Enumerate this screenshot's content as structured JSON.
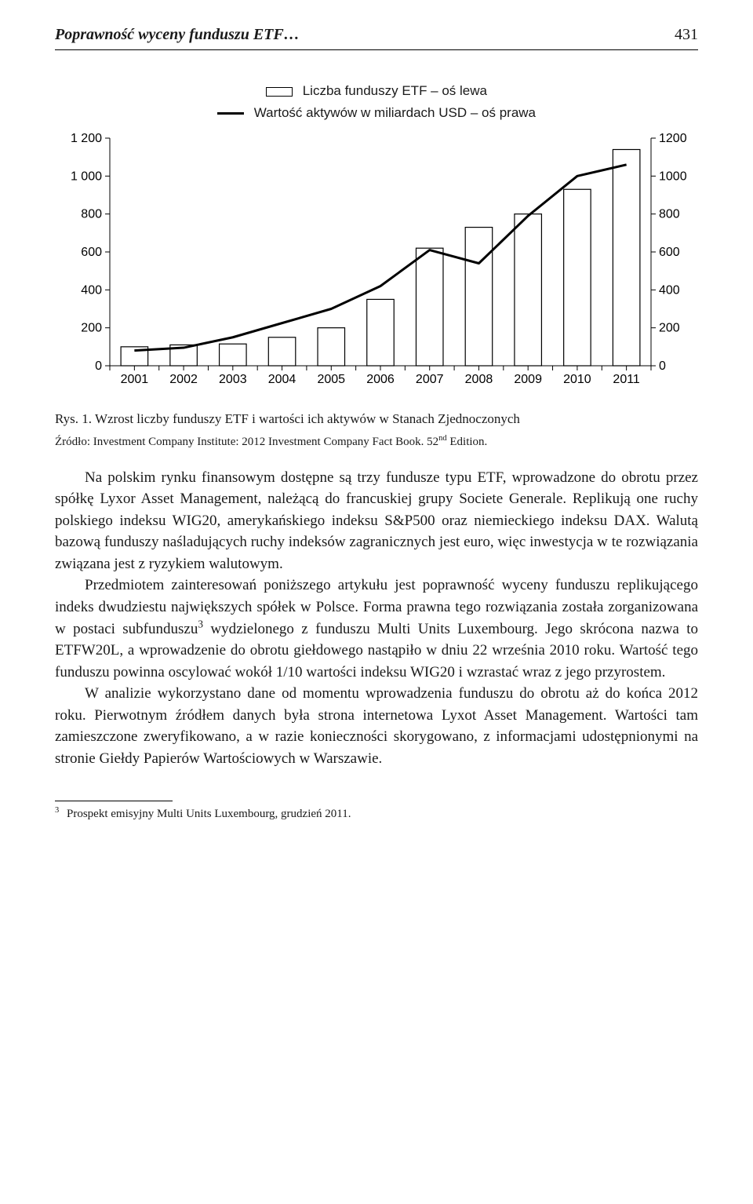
{
  "header": {
    "running_title": "Poprawność wyceny funduszu ETF…",
    "page_number": "431"
  },
  "chart": {
    "type": "bar+line",
    "legend": {
      "bar": "Liczba funduszy ETF – oś lewa",
      "line": "Wartość aktywów w miliardach USD – oś prawa"
    },
    "categories": [
      "2001",
      "2002",
      "2003",
      "2004",
      "2005",
      "2006",
      "2007",
      "2008",
      "2009",
      "2010",
      "2011"
    ],
    "bars": [
      100,
      110,
      115,
      150,
      200,
      350,
      620,
      730,
      800,
      930,
      1140
    ],
    "line": [
      80,
      95,
      150,
      225,
      300,
      420,
      610,
      540,
      790,
      1000,
      1060
    ],
    "left_axis": {
      "ticks": [
        0,
        200,
        400,
        600,
        800,
        1000,
        1200
      ],
      "display": [
        "0",
        "200",
        "400",
        "600",
        "800",
        "1 000",
        "1 200"
      ],
      "min": 0,
      "max": 1200
    },
    "right_axis": {
      "ticks": [
        0,
        200,
        400,
        600,
        800,
        1000,
        1200
      ],
      "min": 0,
      "max": 1200
    },
    "styling": {
      "bar_color": "#ffffff",
      "bar_stroke": "#000000",
      "bar_width": 0.55,
      "line_color": "#000000",
      "line_width": 3,
      "axis_color": "#000000",
      "tick_len": 6,
      "plot_bg": "#ffffff",
      "font_family": "Arial",
      "axis_fontsize": 16,
      "legend_fontsize": 17
    },
    "caption": "Rys. 1. Wzrost liczby funduszy ETF i wartości ich aktywów w Stanach Zjednoczonych",
    "source_label": "Źródło: Investment Company Institute: 2012 Investment Company Fact Book. 52",
    "source_sup": "nd",
    "source_tail": " Edition."
  },
  "paragraphs": {
    "p1": "Na polskim rynku finansowym dostępne są trzy fundusze typu ETF, wprowadzone do obrotu przez spółkę Lyxor Asset Management, należącą do francuskiej grupy Societe Generale. Replikują one ruchy polskiego indeksu WIG20, amerykańskiego indeksu S&P500 oraz niemieckiego indeksu DAX. Walutą bazową funduszy naśladujących ruchy indeksów zagranicznych jest euro, więc inwestycja w te rozwiązania związana jest z ryzykiem walutowym.",
    "p2_a": "Przedmiotem zainteresowań poniższego artykułu jest poprawność wyceny funduszu replikującego indeks dwudziestu największych spółek w Polsce. Forma prawna tego rozwiązania została zorganizowana w postaci subfunduszu",
    "p2_sup": "3",
    "p2_b": " wydzielonego z funduszu Multi Units Luxembourg. Jego skrócona nazwa to ETFW20L, a wprowadzenie do obrotu giełdowego nastąpiło w dniu 22 września 2010 roku. Wartość tego funduszu powinna oscylować wokół 1/10 wartości indeksu WIG20 i wzrastać wraz z jego przyrostem.",
    "p3": "W analizie wykorzystano dane od momentu wprowadzenia funduszu do obrotu aż do końca 2012 roku. Pierwotnym źródłem danych była strona internetowa Lyxot Asset Management. Wartości tam zamieszczone zweryfikowano, a w razie konieczności skorygowano, z informacjami udostępnionymi na stronie Giełdy Papierów Wartościowych w Warszawie."
  },
  "footnote": {
    "num": "3",
    "text": "Prospekt emisyjny Multi Units Luxembourg, grudzień 2011."
  }
}
